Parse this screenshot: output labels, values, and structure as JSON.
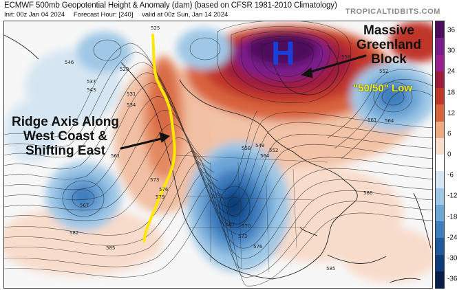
{
  "header": {
    "title": "ECMWF 500mb Geopotential Height & Anomaly (dam) (based on CFSR 1981-2010 Climatology)",
    "init": "Init: 00z Jan 04 2024",
    "forecast_hour": "Forecast Hour: [240]",
    "valid": "valid at 00z Sun, Jan 14 2024",
    "brand": "TROPICALTIDBITS.COM"
  },
  "annotations": {
    "ridge": "Ridge Axis Along West Coast & Shifting East",
    "block": "Massive Greenland Block",
    "high_symbol": "H",
    "fifty_fifty": "\"50/50\" Low"
  },
  "contour_labels": [
    "525",
    "528",
    "537",
    "543",
    "531",
    "534",
    "546",
    "558",
    "552",
    "561",
    "564",
    "567",
    "573",
    "576",
    "579",
    "561",
    "558",
    "564",
    "567",
    "570",
    "573",
    "576",
    "582",
    "585",
    "588",
    "585",
    "549",
    "552"
  ],
  "colorbar": {
    "labels": [
      "36",
      "30",
      "24",
      "18",
      "12",
      "6",
      "0",
      "-6",
      "-12",
      "-18",
      "-24",
      "-30",
      "-36"
    ],
    "colors": [
      "#4d0c5c",
      "#7b1c8c",
      "#9b2090",
      "#a01c3c",
      "#c0352a",
      "#d8643c",
      "#ecab82",
      "#f8dccb",
      "#ffffff",
      "#d5e6f2",
      "#9fc8e6",
      "#6ea6d6",
      "#3f7ebe",
      "#1f5a9e",
      "#0f3c78",
      "#081e48"
    ]
  },
  "colors": {
    "ridge_line": "#ffe800",
    "high_symbol": "#1a3fd8",
    "annotation_yellow": "#f2e600"
  }
}
